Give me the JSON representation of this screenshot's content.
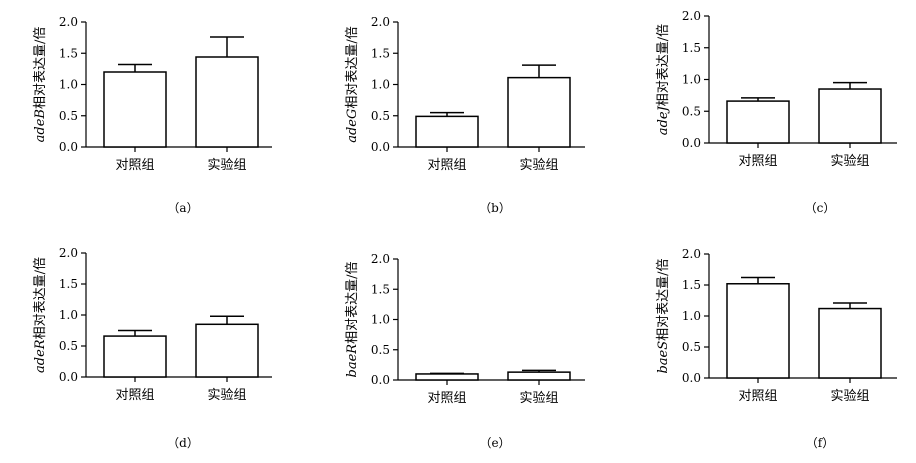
{
  "chart_data": [
    {
      "type": "bar",
      "panel_label": "（a）",
      "gene": "adeB",
      "ylabel_suffix": "相对表达量/倍",
      "categories": [
        "对照组",
        "实验组"
      ],
      "values": [
        1.2,
        1.44
      ],
      "errors": [
        0.12,
        0.32
      ],
      "ylim": [
        0,
        2.0
      ],
      "yticks": [
        "0.0",
        "0.5",
        "1.0",
        "1.5",
        "2.0"
      ]
    },
    {
      "type": "bar",
      "panel_label": "（b）",
      "gene": "adeG",
      "ylabel_suffix": "相对表达量/倍",
      "categories": [
        "对照组",
        "实验组"
      ],
      "values": [
        0.49,
        1.11
      ],
      "errors": [
        0.06,
        0.2
      ],
      "ylim": [
        0,
        2.0
      ],
      "yticks": [
        "0.0",
        "0.5",
        "1.0",
        "1.5",
        "2.0"
      ]
    },
    {
      "type": "bar",
      "panel_label": "（c）",
      "gene": "adeJ",
      "ylabel_suffix": "相对表达量/倍",
      "categories": [
        "对照组",
        "实验组"
      ],
      "values": [
        0.66,
        0.85
      ],
      "errors": [
        0.05,
        0.1
      ],
      "ylim": [
        0,
        2.0
      ],
      "yticks": [
        "0.0",
        "0.5",
        "1.0",
        "1.5",
        "2.0"
      ]
    },
    {
      "type": "bar",
      "panel_label": "（d）",
      "gene": "adeR",
      "ylabel_suffix": "相对表达量/倍",
      "categories": [
        "对照组",
        "实验组"
      ],
      "values": [
        0.66,
        0.85
      ],
      "errors": [
        0.09,
        0.13
      ],
      "ylim": [
        0,
        2.0
      ],
      "yticks": [
        "0.0",
        "0.5",
        "1.0",
        "1.5",
        "2.0"
      ]
    },
    {
      "type": "bar",
      "panel_label": "（e）",
      "gene": "baeR",
      "ylabel_suffix": "相对表达量/倍",
      "categories": [
        "对照组",
        "实验组"
      ],
      "values": [
        0.1,
        0.13
      ],
      "errors": [
        0.01,
        0.03
      ],
      "ylim": [
        0,
        2.0
      ],
      "yticks": [
        "0.0",
        "0.5",
        "1.0",
        "1.5",
        "2.0"
      ]
    },
    {
      "type": "bar",
      "panel_label": "（f）",
      "gene": "baeS",
      "ylabel_suffix": "相对表达量/倍",
      "categories": [
        "对照组",
        "实验组"
      ],
      "values": [
        1.52,
        1.12
      ],
      "errors": [
        0.1,
        0.09
      ],
      "ylim": [
        0,
        2.0
      ],
      "yticks": [
        "0.0",
        "0.5",
        "1.0",
        "1.5",
        "2.0"
      ]
    }
  ]
}
